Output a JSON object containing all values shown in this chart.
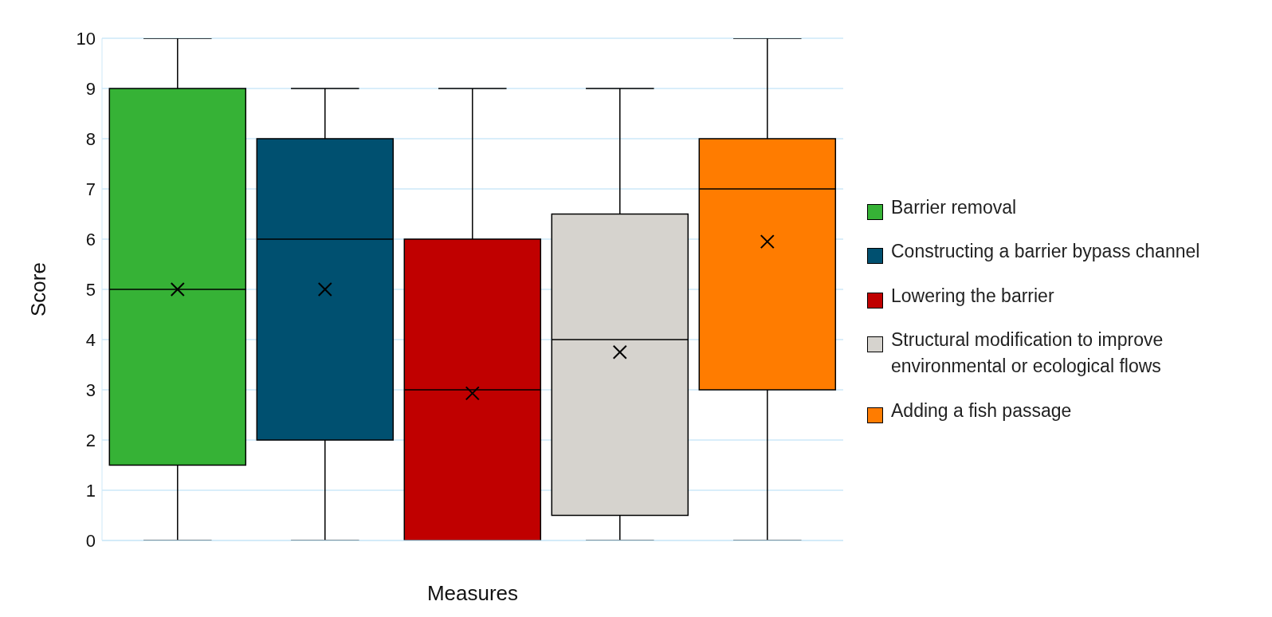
{
  "chart_data": {
    "type": "box",
    "xlabel": "Measures",
    "ylabel": "Score",
    "categories": [
      null
    ],
    "ylim": [
      0,
      10
    ],
    "yticks": [
      0,
      1,
      2,
      3,
      4,
      5,
      6,
      7,
      8,
      9,
      10
    ],
    "grid": "y",
    "legend": "right",
    "marker": "cross",
    "series": [
      {
        "name": "Barrier removal",
        "color": "#36b236",
        "boxes": [
          {
            "low": 0,
            "q1": 1.5,
            "median": 5,
            "q3": 9,
            "high": 10,
            "mean": 5
          }
        ]
      },
      {
        "name": "Constructing a barrier bypass channel",
        "color": "#005070",
        "boxes": [
          {
            "low": 0,
            "q1": 2,
            "median": 6,
            "q3": 8,
            "high": 9,
            "mean": 5
          }
        ]
      },
      {
        "name": "Lowering the barrier",
        "color": "#c00000",
        "boxes": [
          {
            "low": 0,
            "q1": 0,
            "median": 3,
            "q3": 6,
            "high": 9,
            "mean": 2.93
          }
        ]
      },
      {
        "name": "Structural modification to improve environmental or ecological flows",
        "color": "#d6d3ce",
        "boxes": [
          {
            "low": 0,
            "q1": 0.5,
            "median": 4,
            "q3": 6.5,
            "high": 9,
            "mean": 3.75
          }
        ]
      },
      {
        "name": "Adding a fish passage",
        "color": "#ff7c00",
        "boxes": [
          {
            "low": 0,
            "q1": 3,
            "median": 7,
            "q3": 8,
            "high": 10,
            "mean": 5.95
          }
        ]
      }
    ]
  }
}
